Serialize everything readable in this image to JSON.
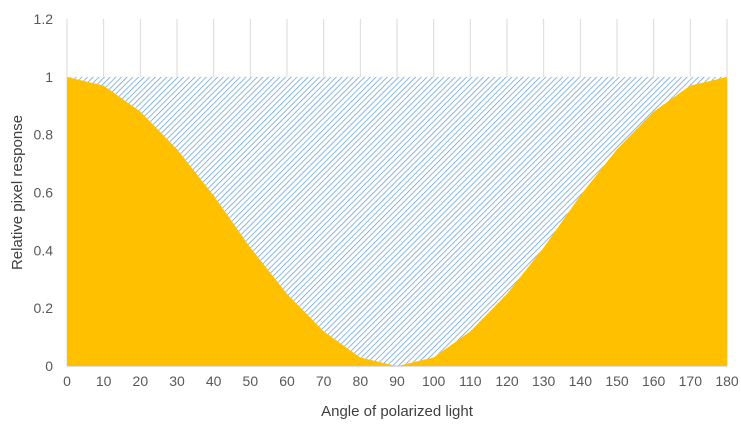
{
  "chart_data": {
    "type": "area",
    "title": "",
    "xlabel": "Angle of polarized light",
    "ylabel": "Relative pixel response",
    "xlim": [
      0,
      180
    ],
    "ylim": [
      0,
      1.2
    ],
    "x_ticks": [
      0,
      10,
      20,
      30,
      40,
      50,
      60,
      70,
      80,
      90,
      100,
      110,
      120,
      130,
      140,
      150,
      160,
      170,
      180
    ],
    "y_ticks": [
      0,
      0.2,
      0.4,
      0.6,
      0.8,
      1,
      1.2
    ],
    "y_tick_labels": [
      "0",
      "0.2",
      "0.4",
      "0.6",
      "0.8",
      "1",
      "1.2"
    ],
    "grid": "vertical",
    "x": [
      0,
      10,
      20,
      30,
      40,
      50,
      60,
      70,
      80,
      90,
      100,
      110,
      120,
      130,
      140,
      150,
      160,
      170,
      180
    ],
    "series": [
      {
        "values": [
          1,
          0.97,
          0.88,
          0.75,
          0.59,
          0.41,
          0.25,
          0.12,
          0.03,
          0,
          0.03,
          0.12,
          0.25,
          0.41,
          0.59,
          0.75,
          0.88,
          0.97,
          1
        ],
        "color": "#FFC000",
        "fill": "solid"
      },
      {
        "values": [
          0,
          0.03,
          0.12,
          0.25,
          0.41,
          0.59,
          0.75,
          0.88,
          0.97,
          1,
          0.97,
          0.88,
          0.75,
          0.59,
          0.41,
          0.25,
          0.12,
          0.03,
          0
        ],
        "color": "#5B9BD5",
        "fill": "hatched"
      }
    ],
    "colors": {
      "grid": "#D9D9D9",
      "axis": "#BFBFBF"
    }
  }
}
